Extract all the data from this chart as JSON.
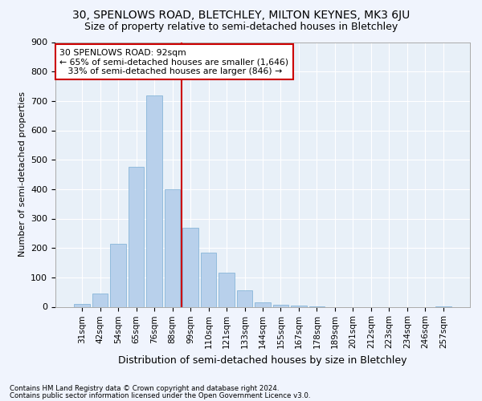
{
  "title": "30, SPENLOWS ROAD, BLETCHLEY, MILTON KEYNES, MK3 6JU",
  "subtitle": "Size of property relative to semi-detached houses in Bletchley",
  "xlabel": "Distribution of semi-detached houses by size in Bletchley",
  "ylabel": "Number of semi-detached properties",
  "categories": [
    "31sqm",
    "42sqm",
    "54sqm",
    "65sqm",
    "76sqm",
    "88sqm",
    "99sqm",
    "110sqm",
    "121sqm",
    "133sqm",
    "144sqm",
    "155sqm",
    "167sqm",
    "178sqm",
    "189sqm",
    "201sqm",
    "212sqm",
    "223sqm",
    "234sqm",
    "246sqm",
    "257sqm"
  ],
  "values": [
    10,
    45,
    215,
    475,
    720,
    400,
    270,
    185,
    115,
    55,
    15,
    7,
    3,
    1,
    0,
    0,
    0,
    0,
    0,
    0,
    2
  ],
  "bar_color": "#b8d0eb",
  "bar_edge_color": "#7aadd4",
  "vline_color": "#cc0000",
  "annotation_line1": "30 SPENLOWS ROAD: 92sqm",
  "annotation_line2": "← 65% of semi-detached houses are smaller (1,646)",
  "annotation_line3": "   33% of semi-detached houses are larger (846) →",
  "annotation_box_color": "#ffffff",
  "annotation_box_edge": "#cc0000",
  "ylim": [
    0,
    900
  ],
  "yticks": [
    0,
    100,
    200,
    300,
    400,
    500,
    600,
    700,
    800,
    900
  ],
  "footnote1": "Contains HM Land Registry data © Crown copyright and database right 2024.",
  "footnote2": "Contains public sector information licensed under the Open Government Licence v3.0.",
  "fig_bg_color": "#f0f4fd",
  "plot_bg_color": "#e8f0f8",
  "title_fontsize": 10,
  "subtitle_fontsize": 9
}
